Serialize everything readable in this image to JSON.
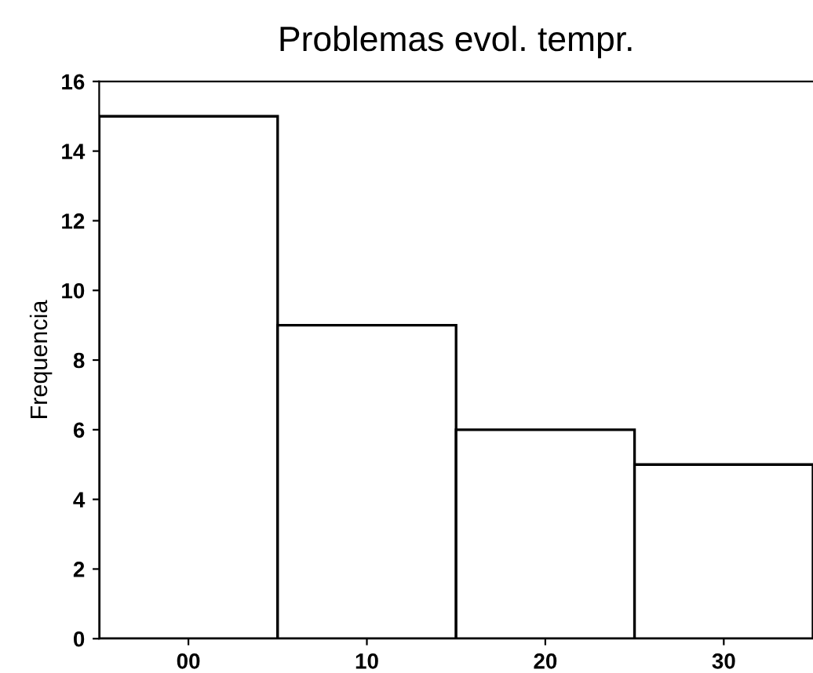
{
  "chart_data": {
    "type": "histogram",
    "title": "Problemas evol. tempr.",
    "ylabel": "Frequencia",
    "bins": [
      -5,
      5,
      15,
      25,
      35
    ],
    "values": [
      15,
      9,
      6,
      5
    ],
    "color": "#ffffff",
    "xlim": [
      -5,
      35
    ],
    "xticks": [
      {
        "value": 0,
        "label": "00"
      },
      10,
      20,
      30
    ],
    "ylim": [
      0,
      16
    ],
    "yticks": [
      0,
      2,
      4,
      6,
      8,
      10,
      12,
      14,
      16
    ],
    "grid": false
  }
}
